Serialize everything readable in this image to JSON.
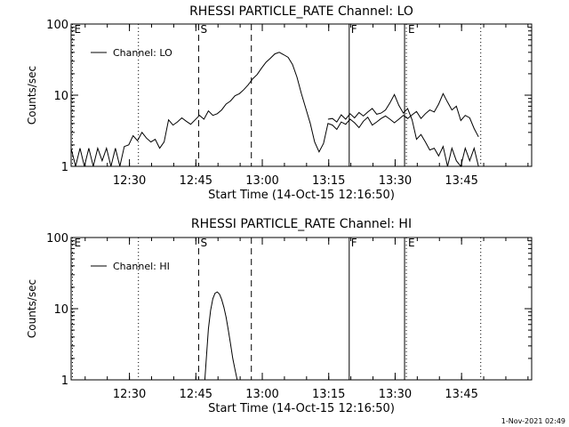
{
  "chart_data": [
    {
      "type": "line",
      "title": "RHESSI PARTICLE_RATE Channel: LO",
      "xlabel": "Start Time (14-Oct-15 12:16:50)",
      "ylabel": "Counts/sec",
      "x_unit": "minutes after 12:16:50",
      "xlim": [
        0,
        104
      ],
      "ylim": [
        1,
        100
      ],
      "ylog": true,
      "grid": false,
      "legend_position": "top-left",
      "x_ticks": [
        {
          "x": 13.17,
          "label": "12:30"
        },
        {
          "x": 28.17,
          "label": "12:45"
        },
        {
          "x": 43.17,
          "label": "13:00"
        },
        {
          "x": 58.17,
          "label": "13:15"
        },
        {
          "x": 73.17,
          "label": "13:30"
        },
        {
          "x": 88.17,
          "label": "13:45"
        }
      ],
      "y_ticks": [
        {
          "y": 1,
          "label": "1"
        },
        {
          "y": 10,
          "label": "10"
        },
        {
          "y": 100,
          "label": "100"
        }
      ],
      "markers": [
        {
          "x": 0.3,
          "label": "E",
          "style": "dotted"
        },
        {
          "x": 15.2,
          "label": "",
          "style": "dotted"
        },
        {
          "x": 28.8,
          "label": "S",
          "style": "dashed"
        },
        {
          "x": 40.7,
          "label": "",
          "style": "dashed"
        },
        {
          "x": 62.8,
          "label": "F",
          "style": "solid"
        },
        {
          "x": 75.3,
          "label": "",
          "style": "solid"
        },
        {
          "x": 75.7,
          "label": "E",
          "style": "dotted"
        },
        {
          "x": 92.5,
          "label": "",
          "style": "dotted"
        }
      ],
      "series": [
        {
          "name": "Channel: LO",
          "x": [
            0,
            1,
            2,
            3,
            4,
            5,
            6,
            7,
            8,
            9,
            10,
            11,
            12,
            13,
            14,
            15,
            16,
            17,
            18,
            19,
            20,
            21,
            22,
            23,
            24,
            25,
            26,
            27,
            28,
            29,
            30,
            31,
            32,
            33,
            34,
            35,
            36,
            37,
            38,
            39,
            40,
            41,
            42,
            43,
            44,
            45,
            46,
            47,
            48,
            49,
            50,
            51,
            52,
            53,
            54,
            55,
            56,
            57,
            58,
            59,
            60,
            61,
            62,
            63,
            64,
            65,
            66,
            67,
            68,
            69,
            70,
            71,
            72,
            73,
            74,
            75,
            76,
            77,
            78,
            79,
            80,
            81,
            82,
            83,
            84,
            85,
            86,
            87,
            88,
            89,
            90,
            91,
            92
          ],
          "y": [
            1.8,
            1,
            1.8,
            1,
            1.8,
            1,
            1.8,
            1.2,
            1.8,
            1,
            1.8,
            1,
            1.9,
            2,
            2.7,
            2.3,
            3,
            2.5,
            2.2,
            2.4,
            1.8,
            2.2,
            4.5,
            3.8,
            4.2,
            4.8,
            4.3,
            3.9,
            4.5,
            5.2,
            4.6,
            6,
            5.2,
            5.5,
            6.2,
            7.5,
            8.3,
            9.8,
            10.5,
            12,
            14,
            17,
            19.5,
            24,
            29,
            33,
            38,
            40,
            37,
            34,
            27,
            18,
            10.5,
            6.5,
            4,
            2.2,
            1.6,
            2.1,
            4,
            3.8,
            3.3,
            4.2,
            3.9,
            4.6,
            4.1,
            3.5,
            4.3,
            4.9,
            3.8,
            4.2,
            4.7,
            5.1,
            4.6,
            4.1,
            4.6,
            5.2,
            4.7,
            5.3,
            5.9,
            4.7,
            5.5,
            6.2,
            5.8,
            7.5,
            10.5,
            8,
            6.2,
            7,
            4.4,
            5.2,
            4.8,
            3.4,
            2.6
          ],
          "x2": [
            58,
            59,
            60,
            61,
            62,
            63,
            64,
            65,
            66,
            67,
            68,
            69,
            70,
            71,
            72,
            73,
            74,
            75,
            76,
            77,
            78,
            79,
            80,
            81,
            82,
            83,
            84,
            85,
            86,
            87,
            88,
            89,
            90,
            91,
            92,
            93,
            94,
            95,
            96,
            97,
            98,
            99,
            100,
            101,
            102,
            103,
            104
          ],
          "y2": [
            4.6,
            4.7,
            4.2,
            5.3,
            4.6,
            5.5,
            4.8,
            5.7,
            5.1,
            5.8,
            6.5,
            5.4,
            5.6,
            6.2,
            7.8,
            10.2,
            7.2,
            5.6,
            6.5,
            4.5,
            2.4,
            2.8,
            2.2,
            1.7,
            1.8,
            1.4,
            1.9,
            1,
            1.8,
            1.2,
            1,
            1.8,
            1.2,
            1.8,
            1,
            1,
            1,
            1,
            1,
            1,
            1,
            1,
            1,
            1,
            1,
            1,
            1
          ]
        }
      ]
    },
    {
      "type": "line",
      "title": "RHESSI PARTICLE_RATE Channel: HI",
      "xlabel": "Start Time (14-Oct-15 12:16:50)",
      "ylabel": "Counts/sec",
      "x_unit": "minutes after 12:16:50",
      "xlim": [
        0,
        104
      ],
      "ylim": [
        1,
        100
      ],
      "ylog": true,
      "grid": false,
      "legend_position": "top-left",
      "x_ticks": [
        {
          "x": 13.17,
          "label": "12:30"
        },
        {
          "x": 28.17,
          "label": "12:45"
        },
        {
          "x": 43.17,
          "label": "13:00"
        },
        {
          "x": 58.17,
          "label": "13:15"
        },
        {
          "x": 73.17,
          "label": "13:30"
        },
        {
          "x": 88.17,
          "label": "13:45"
        }
      ],
      "y_ticks": [
        {
          "y": 1,
          "label": "1"
        },
        {
          "y": 10,
          "label": "10"
        },
        {
          "y": 100,
          "label": "100"
        }
      ],
      "markers": [
        {
          "x": 0.3,
          "label": "E",
          "style": "dotted"
        },
        {
          "x": 15.2,
          "label": "",
          "style": "dotted"
        },
        {
          "x": 28.8,
          "label": "S",
          "style": "dashed"
        },
        {
          "x": 40.7,
          "label": "",
          "style": "dashed"
        },
        {
          "x": 62.8,
          "label": "F",
          "style": "solid"
        },
        {
          "x": 75.3,
          "label": "",
          "style": "solid"
        },
        {
          "x": 75.7,
          "label": "E",
          "style": "dotted"
        },
        {
          "x": 92.5,
          "label": "",
          "style": "dotted"
        }
      ],
      "series": [
        {
          "name": "Channel: HI",
          "x": [
            30.2,
            30.6,
            31,
            31.5,
            32,
            32.5,
            33,
            33.5,
            34,
            34.5,
            35,
            35.5,
            36,
            36.5,
            37,
            37.5
          ],
          "y": [
            1,
            2.3,
            5.2,
            9.5,
            13.8,
            16.5,
            17.2,
            16,
            13.5,
            10.5,
            7.6,
            5,
            3.2,
            2,
            1.4,
            1
          ]
        }
      ]
    }
  ],
  "footer": {
    "timestamp": "1-Nov-2021 02:49"
  }
}
